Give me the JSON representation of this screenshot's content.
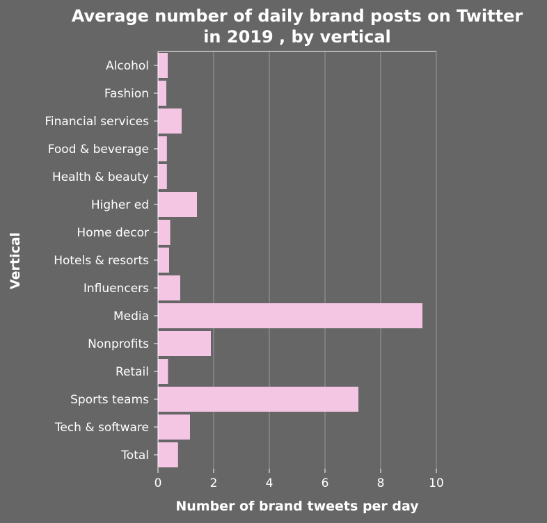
{
  "chart_data": {
    "type": "bar",
    "orientation": "horizontal",
    "title": "Average number of daily brand posts on Twitter in 2019 , by vertical",
    "title_lines": [
      "Average number of daily brand posts on Twitter",
      "in 2019 , by vertical"
    ],
    "xlabel": "Number of brand tweets per day",
    "ylabel": "Vertical",
    "xlim": [
      0,
      10
    ],
    "xticks": [
      0,
      2,
      4,
      6,
      8,
      10
    ],
    "grid": true,
    "categories": [
      "Alcohol",
      "Fashion",
      "Financial services",
      "Food & beverage",
      "Health & beauty",
      "Higher ed",
      "Home decor",
      "Hotels & resorts",
      "Influencers",
      "Media",
      "Nonprofits",
      "Retail",
      "Sports teams",
      "Tech & software",
      "Total"
    ],
    "values": [
      0.35,
      0.3,
      0.85,
      0.32,
      0.32,
      1.4,
      0.44,
      0.4,
      0.8,
      9.5,
      1.9,
      0.36,
      7.2,
      1.15,
      0.72
    ],
    "colors": {
      "background": "#666666",
      "bar": "#f5c6e3",
      "text": "#ffffff",
      "grid": "#9a9a9a",
      "axis": "#ffffff"
    }
  }
}
